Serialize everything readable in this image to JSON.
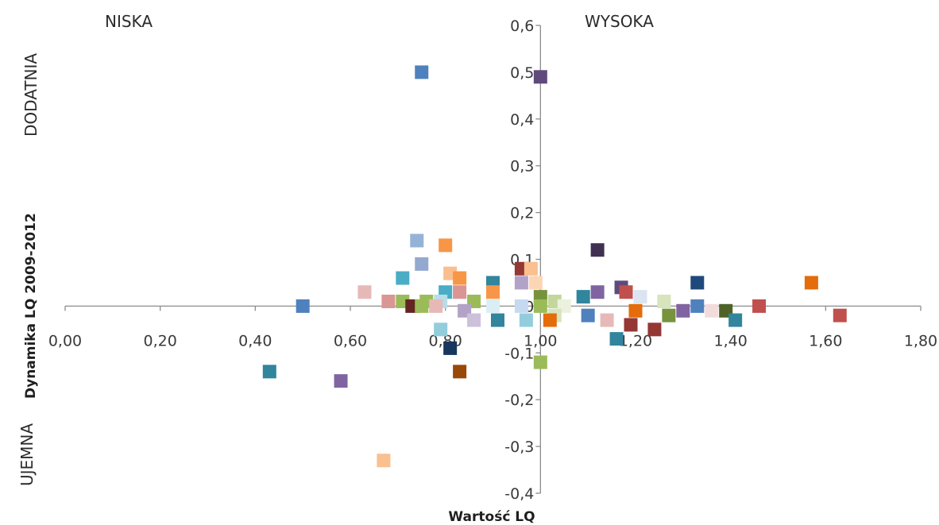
{
  "chart_data": {
    "type": "scatter",
    "xlabel": "Wartość LQ",
    "ylabel": "Dynamika LQ 2009-2012",
    "xlim": [
      0,
      1.8
    ],
    "ylim": [
      -0.4,
      0.6
    ],
    "x_ticks": [
      "0,00",
      "0,20",
      "0,40",
      "0,60",
      "0,80",
      "1,00",
      "1,20",
      "1,40",
      "1,60",
      "1,80"
    ],
    "y_ticks": [
      "0,6",
      "0,5",
      "0,4",
      "0,3",
      "0,2",
      "0,1",
      "0",
      "-0,1",
      "-0,2",
      "-0,3",
      "-0,4"
    ],
    "annotations": {
      "top_left": "NISKA",
      "top_right": "WYSOKA",
      "left_top": "DODATNIA",
      "left_bottom": "UJEMNA"
    },
    "grid": false,
    "legend": "none",
    "points": [
      {
        "x": 0.75,
        "y": 0.5,
        "color": "#4f81bd"
      },
      {
        "x": 1.0,
        "y": 0.49,
        "color": "#604a7b"
      },
      {
        "x": 0.74,
        "y": 0.14,
        "color": "#95b3d7"
      },
      {
        "x": 0.8,
        "y": 0.13,
        "color": "#f79646"
      },
      {
        "x": 1.12,
        "y": 0.12,
        "color": "#403152"
      },
      {
        "x": 0.75,
        "y": 0.09,
        "color": "#93a9cf"
      },
      {
        "x": 0.96,
        "y": 0.08,
        "color": "#953735"
      },
      {
        "x": 0.98,
        "y": 0.08,
        "color": "#fac090"
      },
      {
        "x": 0.81,
        "y": 0.07,
        "color": "#fabf8f"
      },
      {
        "x": 0.71,
        "y": 0.06,
        "color": "#4bacc6"
      },
      {
        "x": 0.83,
        "y": 0.06,
        "color": "#f79646"
      },
      {
        "x": 0.9,
        "y": 0.05,
        "color": "#31859c"
      },
      {
        "x": 0.96,
        "y": 0.05,
        "color": "#b3a2c7"
      },
      {
        "x": 0.99,
        "y": 0.05,
        "color": "#fcd5b5"
      },
      {
        "x": 1.33,
        "y": 0.05,
        "color": "#1f497d"
      },
      {
        "x": 1.57,
        "y": 0.05,
        "color": "#e46c0a"
      },
      {
        "x": 1.17,
        "y": 0.04,
        "color": "#604a7b"
      },
      {
        "x": 1.18,
        "y": 0.03,
        "color": "#c0504d"
      },
      {
        "x": 0.63,
        "y": 0.03,
        "color": "#e6b9b8"
      },
      {
        "x": 0.8,
        "y": 0.03,
        "color": "#4bacc6"
      },
      {
        "x": 0.83,
        "y": 0.03,
        "color": "#d99694"
      },
      {
        "x": 0.9,
        "y": 0.03,
        "color": "#f79646"
      },
      {
        "x": 1.12,
        "y": 0.03,
        "color": "#8064a2"
      },
      {
        "x": 1.09,
        "y": 0.02,
        "color": "#31859c"
      },
      {
        "x": 1.21,
        "y": 0.02,
        "color": "#dbe5f1"
      },
      {
        "x": 0.68,
        "y": 0.01,
        "color": "#d99694"
      },
      {
        "x": 0.71,
        "y": 0.01,
        "color": "#9bbb59"
      },
      {
        "x": 0.73,
        "y": 0.0,
        "color": "#632523"
      },
      {
        "x": 0.76,
        "y": 0.01,
        "color": "#9bbb59"
      },
      {
        "x": 0.79,
        "y": 0.01,
        "color": "#b7dee8"
      },
      {
        "x": 0.86,
        "y": 0.01,
        "color": "#9bbb59"
      },
      {
        "x": 1.0,
        "y": 0.02,
        "color": "#76923c"
      },
      {
        "x": 1.03,
        "y": 0.01,
        "color": "#c3d69b"
      },
      {
        "x": 1.26,
        "y": 0.01,
        "color": "#d7e4bc"
      },
      {
        "x": 0.5,
        "y": 0.0,
        "color": "#4f81bd"
      },
      {
        "x": 0.75,
        "y": 0.0,
        "color": "#9bbb59"
      },
      {
        "x": 0.78,
        "y": 0.0,
        "color": "#e6b9b8"
      },
      {
        "x": 0.84,
        "y": -0.01,
        "color": "#b3a2c7"
      },
      {
        "x": 0.9,
        "y": 0.0,
        "color": "#dbeef4"
      },
      {
        "x": 0.96,
        "y": 0.0,
        "color": "#c6d9f0"
      },
      {
        "x": 1.0,
        "y": 0.0,
        "color": "#9bbb59"
      },
      {
        "x": 1.05,
        "y": 0.0,
        "color": "#ebf1de"
      },
      {
        "x": 1.2,
        "y": -0.01,
        "color": "#e46c0a"
      },
      {
        "x": 1.3,
        "y": -0.01,
        "color": "#8064a2"
      },
      {
        "x": 1.33,
        "y": 0.0,
        "color": "#4f81bd"
      },
      {
        "x": 1.36,
        "y": -0.01,
        "color": "#f2dcdb"
      },
      {
        "x": 1.39,
        "y": -0.01,
        "color": "#4f6228"
      },
      {
        "x": 1.46,
        "y": 0.0,
        "color": "#c0504d"
      },
      {
        "x": 1.63,
        "y": -0.02,
        "color": "#c0504d"
      },
      {
        "x": 1.27,
        "y": -0.02,
        "color": "#77933c"
      },
      {
        "x": 1.1,
        "y": -0.02,
        "color": "#4f81bd"
      },
      {
        "x": 1.03,
        "y": -0.02,
        "color": "#d7e4bc"
      },
      {
        "x": 1.02,
        "y": -0.03,
        "color": "#e46c0a"
      },
      {
        "x": 0.97,
        "y": -0.03,
        "color": "#93cddd"
      },
      {
        "x": 0.91,
        "y": -0.03,
        "color": "#31859c"
      },
      {
        "x": 0.86,
        "y": -0.03,
        "color": "#ccc1da"
      },
      {
        "x": 1.14,
        "y": -0.03,
        "color": "#e6b9b8"
      },
      {
        "x": 1.41,
        "y": -0.03,
        "color": "#31859c"
      },
      {
        "x": 1.19,
        "y": -0.04,
        "color": "#953735"
      },
      {
        "x": 1.24,
        "y": -0.05,
        "color": "#953735"
      },
      {
        "x": 0.79,
        "y": -0.05,
        "color": "#92cddc"
      },
      {
        "x": 1.16,
        "y": -0.07,
        "color": "#31859c"
      },
      {
        "x": 0.81,
        "y": -0.09,
        "color": "#17375e"
      },
      {
        "x": 1.0,
        "y": -0.12,
        "color": "#9bbb59"
      },
      {
        "x": 0.43,
        "y": -0.14,
        "color": "#31859c"
      },
      {
        "x": 0.83,
        "y": -0.14,
        "color": "#984807"
      },
      {
        "x": 0.58,
        "y": -0.16,
        "color": "#8064a2"
      },
      {
        "x": 0.67,
        "y": -0.33,
        "color": "#fac090"
      }
    ]
  }
}
